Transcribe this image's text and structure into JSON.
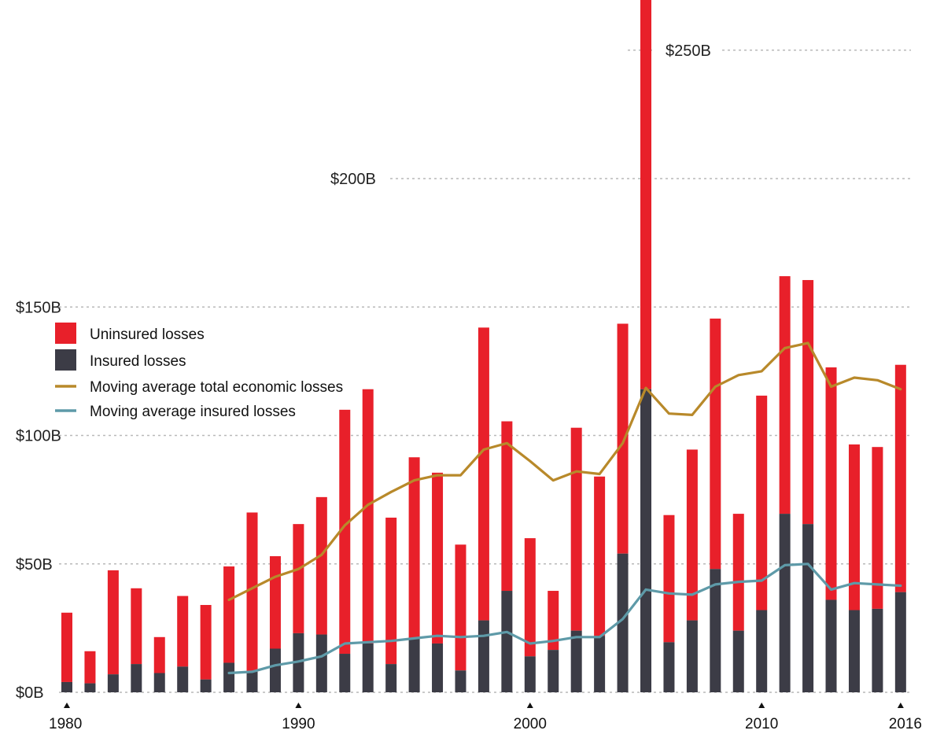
{
  "chart_data": {
    "type": "bar",
    "stacked": true,
    "title": "",
    "xlabel": "",
    "ylabel": "",
    "ylim": [
      0,
      270
    ],
    "y_unit": "billions USD",
    "x": [
      1980,
      1981,
      1982,
      1983,
      1984,
      1985,
      1986,
      1987,
      1988,
      1989,
      1990,
      1991,
      1992,
      1993,
      1994,
      1995,
      1996,
      1997,
      1998,
      1999,
      2000,
      2001,
      2002,
      2003,
      2004,
      2005,
      2006,
      2007,
      2008,
      2009,
      2010,
      2011,
      2012,
      2013,
      2014,
      2015,
      2016
    ],
    "x_tick_labels": [
      "1980",
      "1990",
      "2000",
      "2010",
      "2016"
    ],
    "y_ticks": [
      {
        "value": 0,
        "label": "$0B"
      },
      {
        "value": 50,
        "label": "$50B"
      },
      {
        "value": 100,
        "label": "$100B"
      },
      {
        "value": 150,
        "label": "$150B"
      },
      {
        "value": 200,
        "label": "$200B"
      },
      {
        "value": 250,
        "label": "$250B"
      }
    ],
    "grid": true,
    "series": [
      {
        "name": "Insured losses",
        "kind": "bar",
        "color": "#3c3c46",
        "values": [
          4,
          3.5,
          7,
          11,
          7.5,
          10,
          5,
          11.5,
          8,
          17,
          23,
          22.5,
          15,
          19,
          11,
          21,
          19,
          8.5,
          28,
          39.5,
          14,
          16.5,
          24,
          22,
          54,
          118,
          19.5,
          28,
          48,
          24,
          32,
          69.5,
          65.5,
          36,
          32,
          32.5,
          39
        ]
      },
      {
        "name": "Uninsured losses",
        "kind": "bar",
        "color": "#e8202a",
        "values": [
          27,
          12.5,
          40.5,
          29.5,
          14,
          27.5,
          29,
          37.5,
          62,
          36,
          42.5,
          53.5,
          95,
          99,
          57,
          70.5,
          66.5,
          49,
          114,
          66,
          46,
          23,
          79,
          62,
          89.5,
          154,
          49.5,
          66.5,
          97.5,
          45.5,
          83.5,
          92.5,
          95,
          90.5,
          64.5,
          63,
          88.5
        ]
      },
      {
        "name": "Moving average total economic losses",
        "kind": "line",
        "color": "#b8892a",
        "x": [
          1987,
          1988,
          1989,
          1990,
          1991,
          1992,
          1993,
          1994,
          1995,
          1996,
          1997,
          1998,
          1999,
          2000,
          2001,
          2002,
          2003,
          2004,
          2005,
          2006,
          2007,
          2008,
          2009,
          2010,
          2011,
          2012,
          2013,
          2014,
          2015,
          2016
        ],
        "values": [
          36,
          40.5,
          45,
          48,
          53.5,
          65,
          73,
          78,
          82.5,
          84.5,
          84.5,
          94.5,
          97,
          90,
          82.5,
          86,
          85,
          97,
          118.5,
          108.5,
          108,
          119,
          123.5,
          125,
          134,
          136,
          119,
          122.5,
          121.5,
          118
        ]
      },
      {
        "name": "Moving average insured losses",
        "kind": "line",
        "color": "#5e9aa8",
        "x": [
          1987,
          1988,
          1989,
          1990,
          1991,
          1992,
          1993,
          1994,
          1995,
          1996,
          1997,
          1998,
          1999,
          2000,
          2001,
          2002,
          2003,
          2004,
          2005,
          2006,
          2007,
          2008,
          2009,
          2010,
          2011,
          2012,
          2013,
          2014,
          2015,
          2016
        ],
        "values": [
          7.5,
          8,
          10.5,
          12,
          14,
          19,
          19.5,
          20,
          21,
          22,
          21.5,
          22,
          23.5,
          19,
          20,
          21.5,
          21.5,
          28.5,
          40,
          38.5,
          38,
          42,
          43,
          43.5,
          49.5,
          50,
          40,
          42.5,
          42,
          41.5
        ]
      }
    ],
    "legend": {
      "placement": "left",
      "entries": [
        {
          "label": "Uninsured losses",
          "marker": "square",
          "color": "#e8202a"
        },
        {
          "label": "Insured losses",
          "marker": "square",
          "color": "#3c3c46"
        },
        {
          "label": "Moving average total economic losses",
          "marker": "line",
          "color": "#b8892a"
        },
        {
          "label": "Moving average insured losses",
          "marker": "line",
          "color": "#5e9aa8"
        }
      ]
    }
  }
}
